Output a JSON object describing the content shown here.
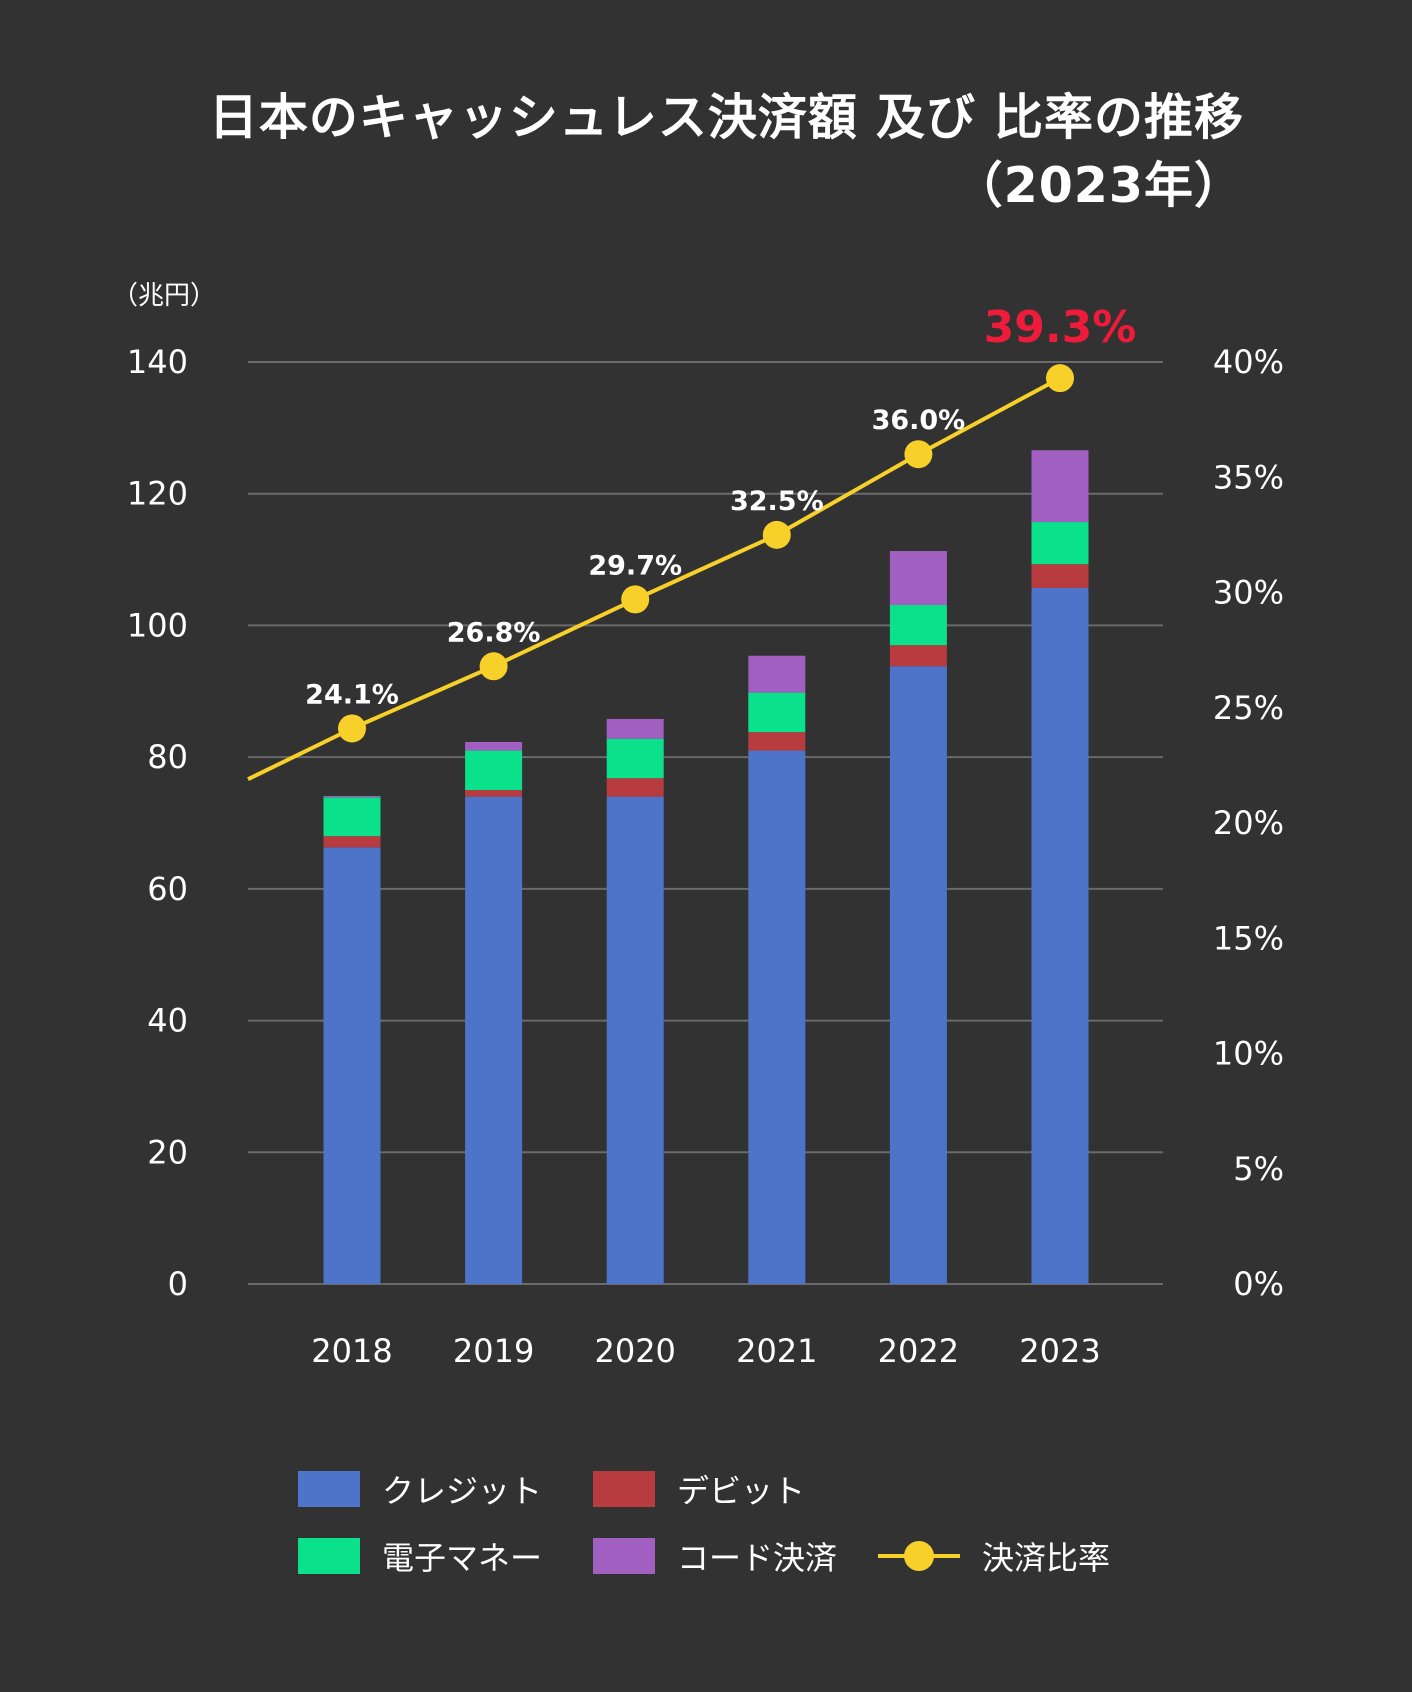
{
  "title": {
    "line1": "日本のキャッシュレス決済額 及び 比率の推移",
    "line2": "（2023年）"
  },
  "colors": {
    "background": "#323232",
    "credit": "#4e74c9",
    "debit": "#b83b40",
    "emoney": "#0be08a",
    "code": "#a05fc1",
    "ratio_line": "#f7d02a",
    "highlight": "#ee1c3a",
    "grid": "#6a6a6a"
  },
  "chart_data": {
    "type": "bar",
    "stacked": true,
    "categories": [
      "2018",
      "2019",
      "2020",
      "2021",
      "2022",
      "2023"
    ],
    "series": [
      {
        "name": "クレジット",
        "color_key": "credit",
        "values": [
          66.3,
          74.0,
          74.0,
          81.0,
          93.8,
          105.7
        ]
      },
      {
        "name": "デビット",
        "color_key": "debit",
        "values": [
          1.7,
          1.0,
          2.8,
          2.8,
          3.2,
          3.6
        ]
      },
      {
        "name": "電子マネー",
        "color_key": "emoney",
        "values": [
          5.9,
          6.0,
          6.0,
          6.0,
          6.1,
          6.4
        ]
      },
      {
        "name": "コード決済",
        "color_key": "code",
        "values": [
          0.2,
          1.3,
          3.0,
          5.6,
          8.2,
          10.9
        ]
      }
    ],
    "line_series": {
      "name": "決済比率",
      "values": [
        24.1,
        26.8,
        29.7,
        32.5,
        36.0,
        39.3
      ],
      "labels": [
        "24.1%",
        "26.8%",
        "29.7%",
        "32.5%",
        "36.0%",
        "39.3%"
      ],
      "highlight_last": true,
      "start_value": 21.9
    },
    "y_left": {
      "unit_label": "（兆円）",
      "min": 0,
      "max": 140,
      "ticks": [
        0,
        20,
        40,
        60,
        80,
        100,
        120,
        140
      ],
      "tick_labels": [
        "0",
        "20",
        "40",
        "60",
        "80",
        "100",
        "120",
        "140"
      ]
    },
    "y_right": {
      "min": 0,
      "max": 40,
      "ticks": [
        0,
        5,
        10,
        15,
        20,
        25,
        30,
        35,
        40
      ],
      "tick_labels": [
        "0%",
        "5%",
        "10%",
        "15%",
        "20%",
        "25%",
        "30%",
        "35%",
        "40%"
      ]
    },
    "grid": true,
    "legend_position": "bottom"
  },
  "legend": [
    {
      "label": "クレジット",
      "color_key": "credit",
      "kind": "swatch"
    },
    {
      "label": "デビット",
      "color_key": "debit",
      "kind": "swatch"
    },
    {
      "label": "電子マネー",
      "color_key": "emoney",
      "kind": "swatch"
    },
    {
      "label": "コード決済",
      "color_key": "code",
      "kind": "swatch"
    },
    {
      "label": "決済比率",
      "color_key": "ratio_line",
      "kind": "line"
    }
  ]
}
